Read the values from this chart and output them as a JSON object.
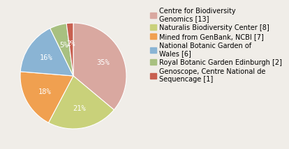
{
  "labels": [
    "Centre for Biodiversity\nGenomics [13]",
    "Naturalis Biodiversity Center [8]",
    "Mined from GenBank, NCBI [7]",
    "National Botanic Garden of\nWales [6]",
    "Royal Botanic Garden Edinburgh [2]",
    "Genoscope, Centre National de\nSequencage [1]"
  ],
  "values": [
    35,
    21,
    18,
    16,
    5,
    2
  ],
  "colors": [
    "#d9a8a0",
    "#c9d17a",
    "#f0a050",
    "#8ab4d4",
    "#a8c080",
    "#c86050"
  ],
  "pct_labels": [
    "35%",
    "21%",
    "18%",
    "16%",
    "5%",
    "2%"
  ],
  "startangle": 90,
  "legend_fontsize": 7.0,
  "pct_fontsize": 7.5,
  "background_color": "#f0ede8"
}
